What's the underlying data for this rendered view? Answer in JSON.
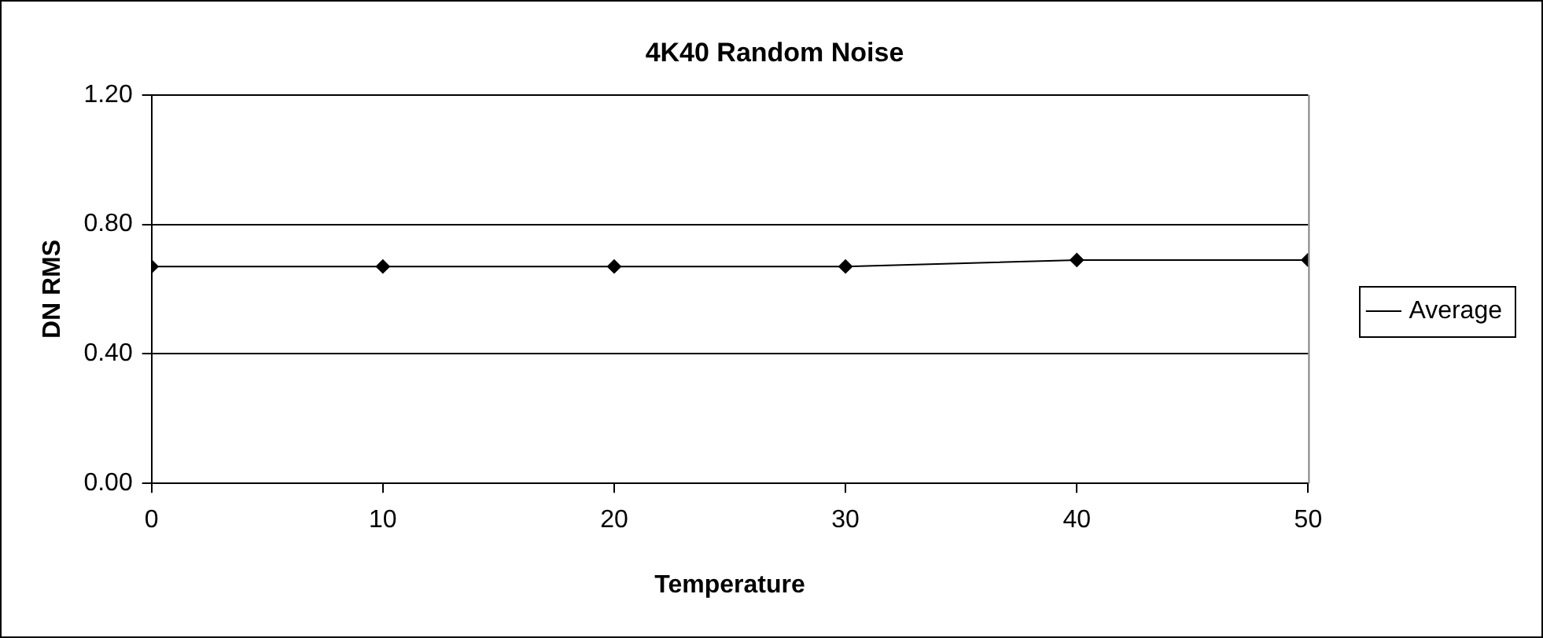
{
  "chart_data": {
    "type": "line",
    "title": "4K40 Random Noise",
    "xlabel": "Temperature",
    "ylabel": "DN RMS",
    "x": [
      0,
      10,
      20,
      30,
      40,
      50
    ],
    "series": [
      {
        "name": "Average",
        "color": "#000000",
        "values": [
          0.67,
          0.67,
          0.67,
          0.67,
          0.69,
          0.69
        ]
      }
    ],
    "xlim": [
      0,
      50
    ],
    "xticks": [
      0,
      10,
      20,
      30,
      40,
      50
    ],
    "ylim": [
      0,
      1.2
    ],
    "yticks": [
      {
        "value": 0,
        "label": "0.00"
      },
      {
        "value": 0.4,
        "label": "0.40"
      },
      {
        "value": 0.8,
        "label": "0.80"
      },
      {
        "value": 1.2,
        "label": "1.20"
      }
    ],
    "grid": "y",
    "legend": "right",
    "marker": "diamond",
    "line_style": "solid"
  }
}
